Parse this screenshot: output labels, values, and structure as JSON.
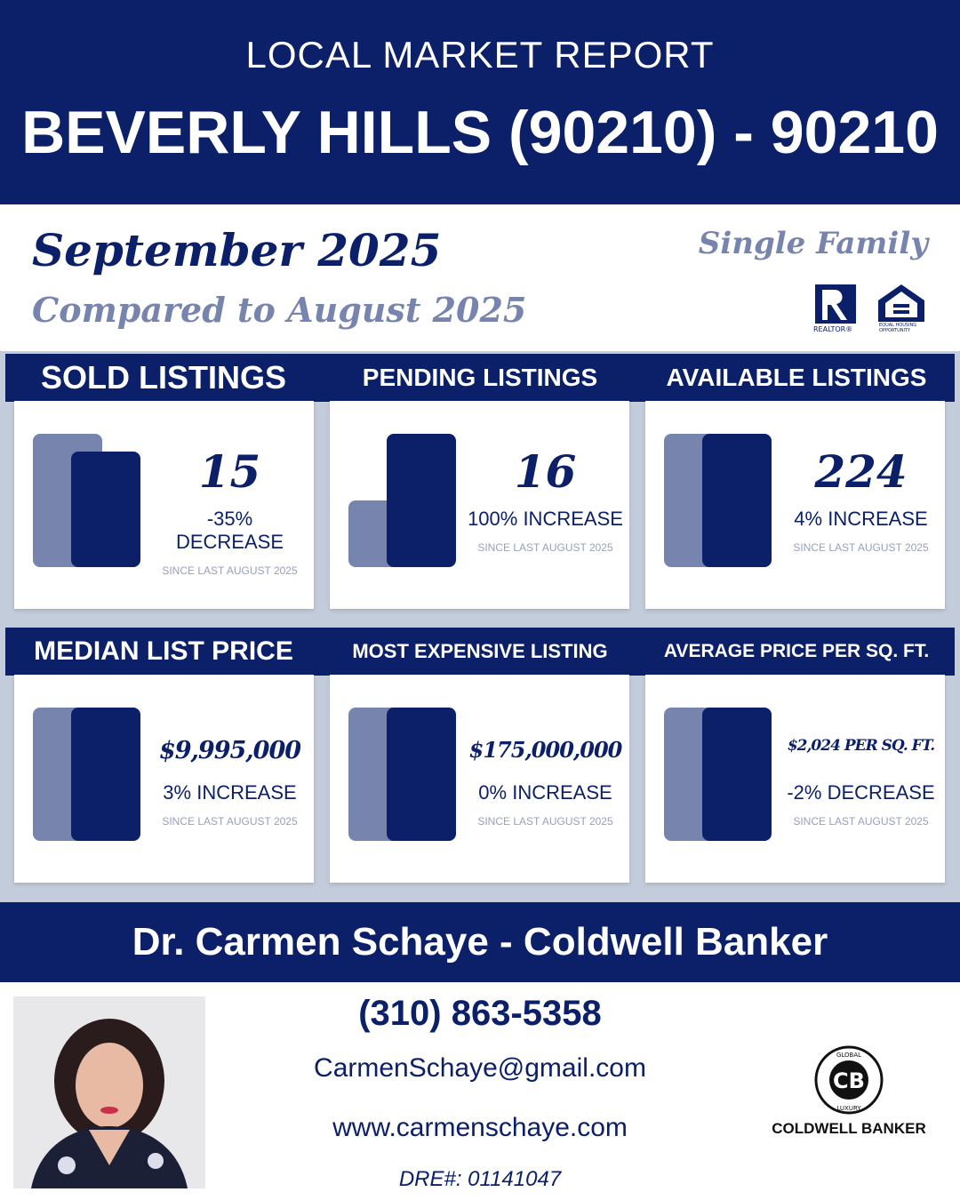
{
  "header": {
    "subtitle": "LOCAL MARKET REPORT",
    "title": "BEVERLY HILLS (90210) - 90210"
  },
  "period": {
    "month": "September 2025",
    "compared": "Compared to August 2025",
    "property_type": "Single Family"
  },
  "logos": {
    "realtor": "REALTOR®",
    "equal_housing": "EQUAL HOUSING OPPORTUNITY"
  },
  "colors": {
    "navy": "#0b2069",
    "light": "#7785ae",
    "background": "#c3ccdb"
  },
  "row1": [
    {
      "heading": "SOLD LISTINGS",
      "value": "15",
      "change": "-35% DECREASE",
      "since": "SINCE LAST AUGUST 2025"
    },
    {
      "heading": "PENDING LISTINGS",
      "value": "16",
      "change": "100% INCREASE",
      "since": "SINCE LAST AUGUST 2025"
    },
    {
      "heading": "AVAILABLE LISTINGS",
      "value": "224",
      "change": "4% INCREASE",
      "since": "SINCE LAST AUGUST 2025"
    }
  ],
  "row2": [
    {
      "heading": "MEDIAN LIST PRICE",
      "value": "$9,995,000",
      "change": "3% INCREASE",
      "since": "SINCE LAST AUGUST 2025"
    },
    {
      "heading": "MOST EXPENSIVE LISTING",
      "value": "$175,000,000",
      "change": "0% INCREASE",
      "since": "SINCE LAST AUGUST 2025"
    },
    {
      "heading": "AVERAGE PRICE PER SQ. FT.",
      "value": "$2,024 PER SQ. FT.",
      "change": "-2% DECREASE",
      "since": "SINCE LAST AUGUST 2025"
    }
  ],
  "agent": {
    "banner": "Dr. Carmen Schaye - Coldwell Banker",
    "phone": "(310) 863-5358",
    "email": "CarmenSchaye@gmail.com",
    "website": "www.carmenschaye.com",
    "dre": "DRE#: 01141047"
  },
  "brand": {
    "name": "COLDWELL BANKER",
    "ring_top": "GLOBAL",
    "ring_bottom": "LUXURY"
  }
}
